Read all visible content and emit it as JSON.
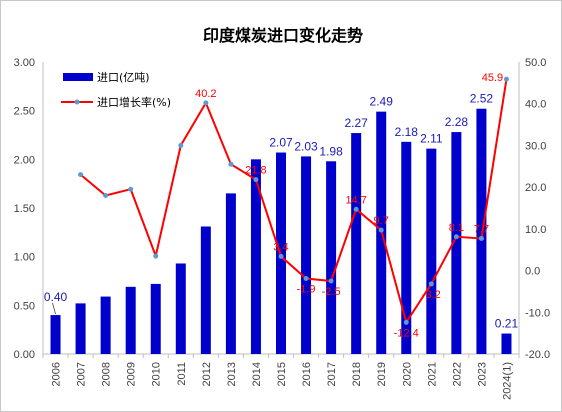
{
  "chart_data": {
    "type": "bar",
    "title": "印度煤炭进口变化走势",
    "categories": [
      "2006",
      "2007",
      "2008",
      "2009",
      "2010",
      "2011",
      "2012",
      "2013",
      "2014",
      "2015",
      "2016",
      "2017",
      "2018",
      "2019",
      "2020",
      "2021",
      "2022",
      "2023",
      "2024(1)"
    ],
    "series": [
      {
        "name": "进口(亿吨)",
        "type": "bar",
        "axis": "left",
        "color": "#0000cc",
        "values": [
          0.4,
          0.52,
          0.59,
          0.69,
          0.72,
          0.93,
          1.31,
          1.65,
          2.0,
          2.07,
          2.03,
          1.98,
          2.27,
          2.49,
          2.18,
          2.11,
          2.28,
          2.52,
          0.21
        ],
        "labels": [
          "0.40",
          "",
          "",
          "",
          "",
          "",
          "",
          "",
          "",
          "2.07",
          "2.03",
          "1.98",
          "2.27",
          "2.49",
          "2.18",
          "2.11",
          "2.28",
          "2.52",
          "0.21"
        ]
      },
      {
        "name": "进口增长率(%)",
        "type": "line",
        "axis": "right",
        "color": "#ff0000",
        "values": [
          null,
          23.0,
          18.0,
          19.5,
          3.5,
          30.0,
          40.2,
          25.5,
          21.8,
          3.4,
          -1.9,
          -2.5,
          14.7,
          9.7,
          -12.4,
          -3.2,
          8.1,
          7.7,
          45.9
        ],
        "labels": [
          "",
          "",
          "",
          "",
          "",
          "",
          "40.2",
          "",
          "21.8",
          "3.4",
          "-1.9",
          "-2.5",
          "14.7",
          "9.7",
          "-12.4",
          "-3.2",
          "8.1",
          "7.7",
          "45.9"
        ]
      }
    ],
    "y_left": {
      "ylim": [
        0,
        3
      ],
      "ticks": [
        "0.00",
        "0.50",
        "1.00",
        "1.50",
        "2.00",
        "2.50",
        "3.00"
      ]
    },
    "y_right": {
      "ylim": [
        -20,
        50
      ],
      "ticks": [
        "-20.0",
        "-10.0",
        "0.0",
        "10.0",
        "20.0",
        "30.0",
        "40.0",
        "50.0"
      ]
    },
    "grid": false,
    "legend_position": "top-left"
  }
}
